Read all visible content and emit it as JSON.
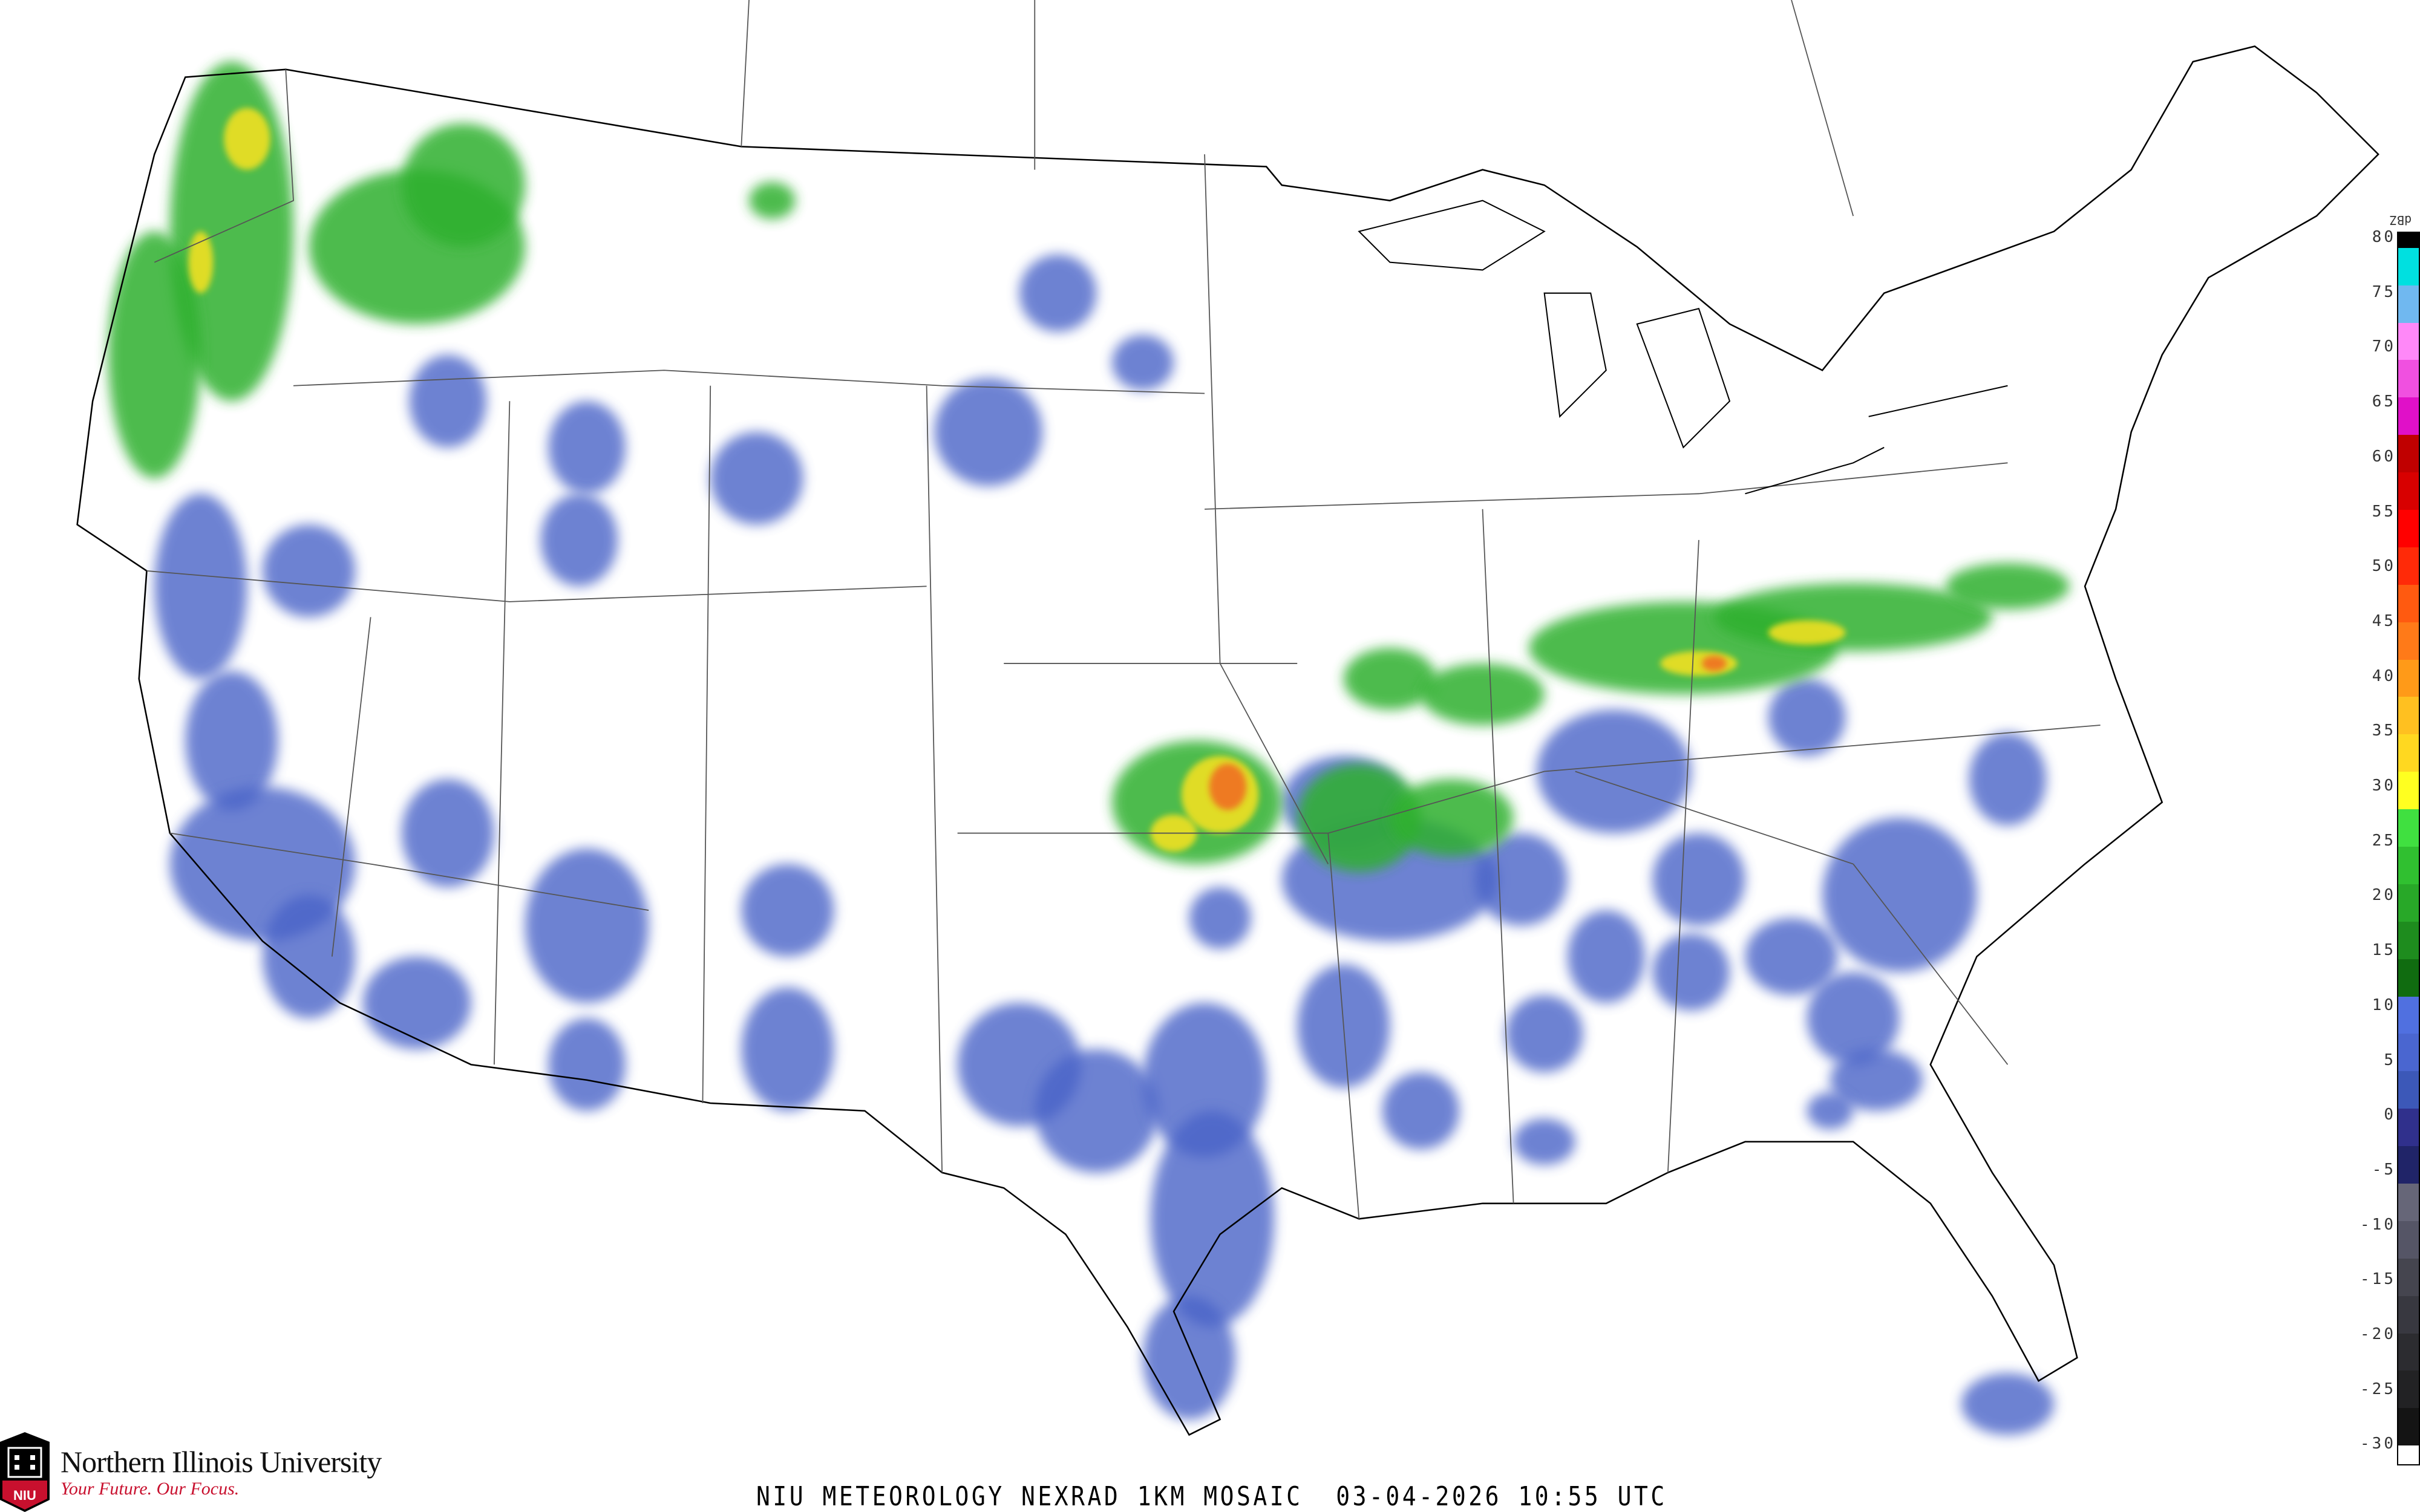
{
  "title": "NIU METEOROLOGY NEXRAD 1KM MOSAIC  03-04-2026 10:55 UTC",
  "logo": {
    "name": "Northern Illinois University",
    "tagline": "Your Future. Our Focus.",
    "mark": "NIU",
    "brand_color": "#c8102e"
  },
  "colorbar": {
    "unit": "dBZ",
    "labels": [
      "80",
      "75",
      "70",
      "65",
      "60",
      "55",
      "50",
      "45",
      "40",
      "35",
      "30",
      "25",
      "20",
      "15",
      "10",
      "5",
      "0",
      "-5",
      "-10",
      "-15",
      "-20",
      "-25",
      "-30"
    ],
    "colors": [
      "#00e0e0",
      "#70b8f0",
      "#ff88f8",
      "#f050e0",
      "#e010c8",
      "#c00000",
      "#d80000",
      "#ff0000",
      "#ff2a08",
      "#ff5a10",
      "#ff7a18",
      "#ff9a18",
      "#ffc020",
      "#ffd820",
      "#ffff20",
      "#40e040",
      "#30c030",
      "#28a828",
      "#1e8c1e",
      "#106c10",
      "#5070e0",
      "#4a66d0",
      "#3c58b8",
      "#30308c",
      "#202468",
      "#666678",
      "#555566",
      "#45454f",
      "#383840",
      "#2c2c30",
      "#222224",
      "#141414"
    ]
  },
  "colors": {
    "coast": "#000000",
    "state_line": "#555555",
    "county_line": "#cccccc",
    "highway": "#c8906a",
    "low_echo": "#4a63c8",
    "moderate_echo": "#2fb02f",
    "heavy_echo": "#f0e020",
    "intense_echo": "#f07020"
  }
}
